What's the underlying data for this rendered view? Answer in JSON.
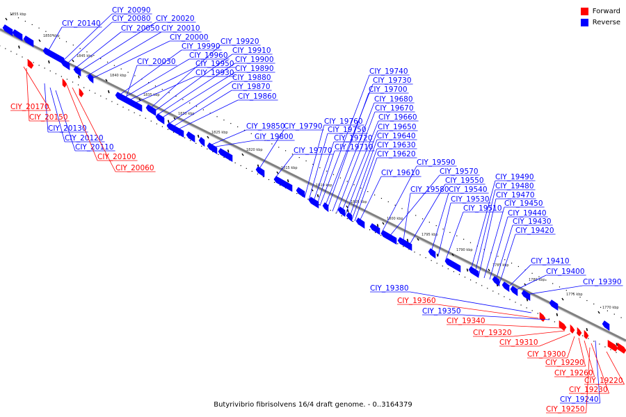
{
  "caption": "Butyrivibrio fibrisolvens 16/4 draft genome. - 0..3164379",
  "legend": [
    {
      "label": "Forward",
      "color": "#ff0000"
    },
    {
      "label": "Reverse",
      "color": "#0000ff"
    }
  ],
  "colors": {
    "forward": "#ff0000",
    "reverse": "#0000ff",
    "backbone": "#808080"
  },
  "ruler_labels": [
    "1855 kbp",
    "1850 kbp",
    "1845 kbp",
    "1840 kbp",
    "1835 kbp",
    "1830 kbp",
    "1825 kbp",
    "1820 kbp",
    "1815 kbp",
    "1810 kbp",
    "1805 kbp",
    "1800 kbp",
    "1795 kbp",
    "1790 kbp",
    "1785 kbp",
    "1780 kbp",
    "1775 kbp",
    "1770 kbp"
  ],
  "genes": [
    {
      "id": "CIY_20140",
      "strand": "reverse"
    },
    {
      "id": "CIY_20090",
      "strand": "reverse"
    },
    {
      "id": "CIY_20080",
      "strand": "reverse"
    },
    {
      "id": "CIY_20050",
      "strand": "reverse"
    },
    {
      "id": "CIY_20020",
      "strand": "reverse"
    },
    {
      "id": "CIY_20010",
      "strand": "reverse"
    },
    {
      "id": "CIY_20000",
      "strand": "reverse"
    },
    {
      "id": "CIY_19990",
      "strand": "reverse"
    },
    {
      "id": "CIY_19960",
      "strand": "reverse"
    },
    {
      "id": "CIY_19950",
      "strand": "reverse"
    },
    {
      "id": "CIY_19930",
      "strand": "reverse"
    },
    {
      "id": "CIY_20030",
      "strand": "reverse"
    },
    {
      "id": "CIY_19920",
      "strand": "reverse"
    },
    {
      "id": "CIY_19910",
      "strand": "reverse"
    },
    {
      "id": "CIY_19900",
      "strand": "reverse"
    },
    {
      "id": "CIY_19890",
      "strand": "reverse"
    },
    {
      "id": "CIY_19880",
      "strand": "reverse"
    },
    {
      "id": "CIY_19870",
      "strand": "reverse"
    },
    {
      "id": "CIY_19860",
      "strand": "reverse"
    },
    {
      "id": "CIY_19850",
      "strand": "reverse"
    },
    {
      "id": "CIY_19800",
      "strand": "reverse"
    },
    {
      "id": "CIY_19790",
      "strand": "reverse"
    },
    {
      "id": "CIY_19770",
      "strand": "reverse"
    },
    {
      "id": "CIY_19740",
      "strand": "reverse"
    },
    {
      "id": "CIY_19730",
      "strand": "reverse"
    },
    {
      "id": "CIY_19700",
      "strand": "reverse"
    },
    {
      "id": "CIY_19680",
      "strand": "reverse"
    },
    {
      "id": "CIY_19670",
      "strand": "reverse"
    },
    {
      "id": "CIY_19760",
      "strand": "reverse"
    },
    {
      "id": "CIY_19660",
      "strand": "reverse"
    },
    {
      "id": "CIY_19750",
      "strand": "reverse"
    },
    {
      "id": "CIY_19650",
      "strand": "reverse"
    },
    {
      "id": "CIY_19720",
      "strand": "reverse"
    },
    {
      "id": "CIY_19640",
      "strand": "reverse"
    },
    {
      "id": "CIY_19710",
      "strand": "reverse"
    },
    {
      "id": "CIY_19630",
      "strand": "reverse"
    },
    {
      "id": "CIY_19620",
      "strand": "reverse"
    },
    {
      "id": "CIY_19590",
      "strand": "reverse"
    },
    {
      "id": "CIY_19610",
      "strand": "reverse"
    },
    {
      "id": "CIY_19570",
      "strand": "reverse"
    },
    {
      "id": "CIY_19550",
      "strand": "reverse"
    },
    {
      "id": "CIY_19580",
      "strand": "reverse"
    },
    {
      "id": "CIY_19540",
      "strand": "reverse"
    },
    {
      "id": "CIY_19530",
      "strand": "reverse"
    },
    {
      "id": "CIY_19510",
      "strand": "reverse"
    },
    {
      "id": "CIY_19490",
      "strand": "reverse"
    },
    {
      "id": "CIY_19480",
      "strand": "reverse"
    },
    {
      "id": "CIY_19470",
      "strand": "reverse"
    },
    {
      "id": "CIY_19450",
      "strand": "reverse"
    },
    {
      "id": "CIY_19440",
      "strand": "reverse"
    },
    {
      "id": "CIY_19430",
      "strand": "reverse"
    },
    {
      "id": "CIY_19420",
      "strand": "reverse"
    },
    {
      "id": "CIY_19410",
      "strand": "reverse"
    },
    {
      "id": "CIY_19400",
      "strand": "reverse"
    },
    {
      "id": "CIY_19390",
      "strand": "reverse"
    },
    {
      "id": "CIY_19380",
      "strand": "reverse"
    },
    {
      "id": "CIY_19350",
      "strand": "reverse"
    },
    {
      "id": "CIY_19240",
      "strand": "reverse"
    },
    {
      "id": "CIY_20130",
      "strand": "reverse"
    },
    {
      "id": "CIY_20120",
      "strand": "reverse"
    },
    {
      "id": "CIY_20110",
      "strand": "reverse"
    },
    {
      "id": "CIY_20170",
      "strand": "forward"
    },
    {
      "id": "CIY_20150",
      "strand": "forward"
    },
    {
      "id": "CIY_20100",
      "strand": "forward"
    },
    {
      "id": "CIY_20060",
      "strand": "forward"
    },
    {
      "id": "CIY_19360",
      "strand": "forward"
    },
    {
      "id": "CIY_19340",
      "strand": "forward"
    },
    {
      "id": "CIY_19320",
      "strand": "forward"
    },
    {
      "id": "CIY_19310",
      "strand": "forward"
    },
    {
      "id": "CIY_19300",
      "strand": "forward"
    },
    {
      "id": "CIY_19290",
      "strand": "forward"
    },
    {
      "id": "CIY_19260",
      "strand": "forward"
    },
    {
      "id": "CIY_19230",
      "strand": "forward"
    },
    {
      "id": "CIY_19220",
      "strand": "forward"
    },
    {
      "id": "CIY_19250",
      "strand": "forward"
    }
  ]
}
